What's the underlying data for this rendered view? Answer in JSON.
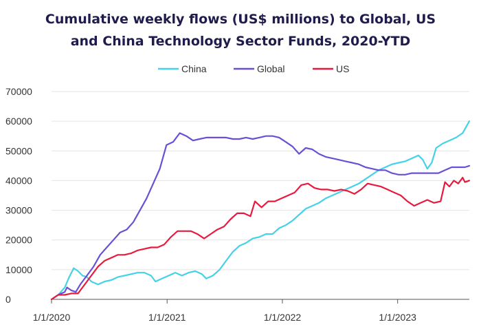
{
  "chart_data": {
    "type": "line",
    "title": "Cumulative weekly flows (US$ millions) to Global, US and China Technology Sector Funds, 2020-YTD",
    "title_lines": [
      "Cumulative weekly flows (US$ millions) to Global, US",
      "and China Technology Sector Funds, 2020-YTD"
    ],
    "xlabel": "",
    "ylabel": "",
    "ylim": [
      0,
      70000
    ],
    "yticks": [
      0,
      10000,
      20000,
      30000,
      40000,
      50000,
      60000,
      70000
    ],
    "ytick_labels": [
      "0",
      "10000",
      "20000",
      "30000",
      "40000",
      "50000",
      "60000",
      "70000"
    ],
    "xlim": [
      "2020-01-01",
      "2023-08-16"
    ],
    "xticks": [
      "2020-01-01",
      "2021-01-01",
      "2022-01-01",
      "2023-01-01"
    ],
    "xtick_labels": [
      "1/1/2020",
      "1/1/2021",
      "1/1/2022",
      "1/1/2023"
    ],
    "grid": "horizontal",
    "legend_position": "top-center",
    "series": [
      {
        "name": "China",
        "color": "#45d1e8",
        "points": [
          [
            "2020-01-01",
            0
          ],
          [
            "2020-01-22",
            1500
          ],
          [
            "2020-02-12",
            4000
          ],
          [
            "2020-02-26",
            7500
          ],
          [
            "2020-03-11",
            10500
          ],
          [
            "2020-03-25",
            9500
          ],
          [
            "2020-04-08",
            8000
          ],
          [
            "2020-04-22",
            7500
          ],
          [
            "2020-05-06",
            6000
          ],
          [
            "2020-05-27",
            5000
          ],
          [
            "2020-06-17",
            6000
          ],
          [
            "2020-07-08",
            6500
          ],
          [
            "2020-07-29",
            7500
          ],
          [
            "2020-08-19",
            8000
          ],
          [
            "2020-09-09",
            8500
          ],
          [
            "2020-09-30",
            9000
          ],
          [
            "2020-10-21",
            9000
          ],
          [
            "2020-11-11",
            8000
          ],
          [
            "2020-11-25",
            6000
          ],
          [
            "2020-12-16",
            7000
          ],
          [
            "2021-01-06",
            8000
          ],
          [
            "2021-01-27",
            9000
          ],
          [
            "2021-02-17",
            8000
          ],
          [
            "2021-03-10",
            9000
          ],
          [
            "2021-03-31",
            9500
          ],
          [
            "2021-04-21",
            8500
          ],
          [
            "2021-05-05",
            7000
          ],
          [
            "2021-05-26",
            8000
          ],
          [
            "2021-06-16",
            10000
          ],
          [
            "2021-07-07",
            13000
          ],
          [
            "2021-07-28",
            16000
          ],
          [
            "2021-08-18",
            18000
          ],
          [
            "2021-09-08",
            19000
          ],
          [
            "2021-09-29",
            20500
          ],
          [
            "2021-10-20",
            21000
          ],
          [
            "2021-11-10",
            22000
          ],
          [
            "2021-12-01",
            22000
          ],
          [
            "2021-12-22",
            24000
          ],
          [
            "2022-01-12",
            25000
          ],
          [
            "2022-02-02",
            26500
          ],
          [
            "2022-02-23",
            28500
          ],
          [
            "2022-03-16",
            30500
          ],
          [
            "2022-04-06",
            31500
          ],
          [
            "2022-04-27",
            32500
          ],
          [
            "2022-05-18",
            34000
          ],
          [
            "2022-06-08",
            35000
          ],
          [
            "2022-06-29",
            36000
          ],
          [
            "2022-07-20",
            37000
          ],
          [
            "2022-08-10",
            38000
          ],
          [
            "2022-08-31",
            39000
          ],
          [
            "2022-09-21",
            40500
          ],
          [
            "2022-10-12",
            42000
          ],
          [
            "2022-11-02",
            43500
          ],
          [
            "2022-11-23",
            44500
          ],
          [
            "2022-12-14",
            45500
          ],
          [
            "2023-01-04",
            46000
          ],
          [
            "2023-01-25",
            46500
          ],
          [
            "2023-02-15",
            47500
          ],
          [
            "2023-03-08",
            48500
          ],
          [
            "2023-03-22",
            47000
          ],
          [
            "2023-04-05",
            44000
          ],
          [
            "2023-04-19",
            46000
          ],
          [
            "2023-05-03",
            51000
          ],
          [
            "2023-05-24",
            52500
          ],
          [
            "2023-06-14",
            53500
          ],
          [
            "2023-07-05",
            54500
          ],
          [
            "2023-07-26",
            56000
          ],
          [
            "2023-08-16",
            60000
          ]
        ]
      },
      {
        "name": "Global",
        "color": "#6a4fd6",
        "points": [
          [
            "2020-01-01",
            0
          ],
          [
            "2020-01-22",
            1500
          ],
          [
            "2020-02-12",
            2500
          ],
          [
            "2020-02-19",
            4000
          ],
          [
            "2020-03-04",
            3000
          ],
          [
            "2020-03-18",
            2500
          ],
          [
            "2020-04-01",
            5000
          ],
          [
            "2020-04-22",
            8000
          ],
          [
            "2020-05-13",
            11000
          ],
          [
            "2020-06-03",
            15000
          ],
          [
            "2020-06-24",
            17500
          ],
          [
            "2020-07-15",
            20000
          ],
          [
            "2020-08-05",
            22500
          ],
          [
            "2020-08-26",
            23500
          ],
          [
            "2020-09-16",
            26000
          ],
          [
            "2020-10-07",
            30000
          ],
          [
            "2020-10-28",
            34000
          ],
          [
            "2020-11-18",
            39000
          ],
          [
            "2020-12-09",
            44000
          ],
          [
            "2020-12-30",
            52000
          ],
          [
            "2021-01-20",
            53000
          ],
          [
            "2021-02-10",
            56000
          ],
          [
            "2021-03-03",
            55000
          ],
          [
            "2021-03-24",
            53500
          ],
          [
            "2021-04-14",
            54000
          ],
          [
            "2021-05-05",
            54500
          ],
          [
            "2021-05-26",
            54500
          ],
          [
            "2021-06-16",
            54500
          ],
          [
            "2021-07-07",
            54500
          ],
          [
            "2021-07-28",
            54000
          ],
          [
            "2021-08-18",
            54000
          ],
          [
            "2021-09-08",
            54500
          ],
          [
            "2021-09-29",
            54000
          ],
          [
            "2021-10-20",
            54500
          ],
          [
            "2021-11-10",
            55000
          ],
          [
            "2021-12-01",
            55000
          ],
          [
            "2021-12-22",
            54500
          ],
          [
            "2022-01-12",
            53000
          ],
          [
            "2022-02-02",
            51500
          ],
          [
            "2022-02-23",
            49000
          ],
          [
            "2022-03-16",
            51000
          ],
          [
            "2022-04-06",
            50500
          ],
          [
            "2022-04-27",
            49000
          ],
          [
            "2022-05-18",
            48000
          ],
          [
            "2022-06-08",
            47500
          ],
          [
            "2022-06-29",
            47000
          ],
          [
            "2022-07-20",
            46500
          ],
          [
            "2022-08-10",
            46000
          ],
          [
            "2022-08-31",
            45500
          ],
          [
            "2022-09-21",
            44500
          ],
          [
            "2022-10-12",
            44000
          ],
          [
            "2022-11-02",
            43500
          ],
          [
            "2022-11-23",
            43500
          ],
          [
            "2022-12-14",
            42500
          ],
          [
            "2023-01-04",
            42000
          ],
          [
            "2023-01-25",
            42000
          ],
          [
            "2023-02-15",
            42500
          ],
          [
            "2023-03-08",
            42500
          ],
          [
            "2023-03-29",
            42500
          ],
          [
            "2023-04-19",
            42500
          ],
          [
            "2023-05-10",
            42500
          ],
          [
            "2023-05-31",
            43500
          ],
          [
            "2023-06-21",
            44500
          ],
          [
            "2023-07-12",
            44500
          ],
          [
            "2023-08-02",
            44500
          ],
          [
            "2023-08-16",
            45000
          ]
        ]
      },
      {
        "name": "US",
        "color": "#e8193d",
        "points": [
          [
            "2020-01-01",
            0
          ],
          [
            "2020-01-22",
            1500
          ],
          [
            "2020-02-12",
            1500
          ],
          [
            "2020-03-04",
            2000
          ],
          [
            "2020-03-25",
            2000
          ],
          [
            "2020-04-15",
            5000
          ],
          [
            "2020-05-06",
            8000
          ],
          [
            "2020-05-27",
            11000
          ],
          [
            "2020-06-17",
            13000
          ],
          [
            "2020-07-08",
            14000
          ],
          [
            "2020-07-29",
            15000
          ],
          [
            "2020-08-19",
            15000
          ],
          [
            "2020-09-09",
            15500
          ],
          [
            "2020-09-30",
            16500
          ],
          [
            "2020-10-21",
            17000
          ],
          [
            "2020-11-11",
            17500
          ],
          [
            "2020-12-02",
            17500
          ],
          [
            "2020-12-23",
            18500
          ],
          [
            "2021-01-13",
            21000
          ],
          [
            "2021-02-03",
            23000
          ],
          [
            "2021-02-24",
            23000
          ],
          [
            "2021-03-17",
            23000
          ],
          [
            "2021-04-07",
            22000
          ],
          [
            "2021-04-28",
            20500
          ],
          [
            "2021-05-19",
            22000
          ],
          [
            "2021-06-09",
            23500
          ],
          [
            "2021-06-30",
            24500
          ],
          [
            "2021-07-21",
            27000
          ],
          [
            "2021-08-11",
            29000
          ],
          [
            "2021-09-01",
            29000
          ],
          [
            "2021-09-22",
            28000
          ],
          [
            "2021-10-06",
            33000
          ],
          [
            "2021-10-27",
            31000
          ],
          [
            "2021-11-17",
            33000
          ],
          [
            "2021-12-08",
            33000
          ],
          [
            "2021-12-29",
            34000
          ],
          [
            "2022-01-19",
            35000
          ],
          [
            "2022-02-09",
            36000
          ],
          [
            "2022-03-02",
            38500
          ],
          [
            "2022-03-23",
            39000
          ],
          [
            "2022-04-13",
            37500
          ],
          [
            "2022-05-04",
            37000
          ],
          [
            "2022-05-25",
            37000
          ],
          [
            "2022-06-15",
            36500
          ],
          [
            "2022-07-06",
            37000
          ],
          [
            "2022-07-27",
            36500
          ],
          [
            "2022-08-17",
            35500
          ],
          [
            "2022-09-07",
            37000
          ],
          [
            "2022-09-28",
            39000
          ],
          [
            "2022-10-19",
            38500
          ],
          [
            "2022-11-09",
            38000
          ],
          [
            "2022-11-30",
            37000
          ],
          [
            "2022-12-21",
            36000
          ],
          [
            "2023-01-11",
            35000
          ],
          [
            "2023-02-01",
            33000
          ],
          [
            "2023-02-22",
            31500
          ],
          [
            "2023-03-15",
            32500
          ],
          [
            "2023-04-05",
            33500
          ],
          [
            "2023-04-26",
            32500
          ],
          [
            "2023-05-17",
            33000
          ],
          [
            "2023-05-31",
            39500
          ],
          [
            "2023-06-14",
            38000
          ],
          [
            "2023-06-28",
            40000
          ],
          [
            "2023-07-12",
            39000
          ],
          [
            "2023-07-26",
            41000
          ],
          [
            "2023-08-02",
            39500
          ],
          [
            "2023-08-16",
            40000
          ]
        ]
      }
    ]
  }
}
